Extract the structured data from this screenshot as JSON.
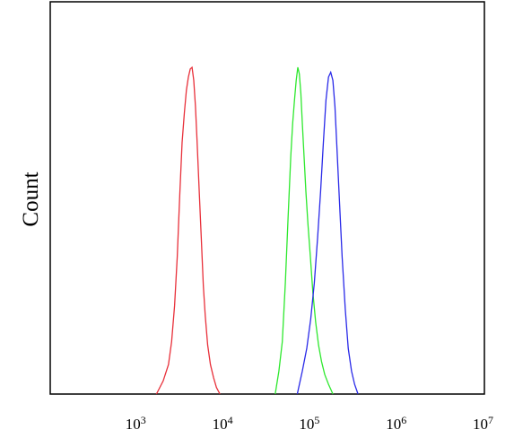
{
  "chart_data": {
    "type": "line",
    "title": "",
    "xlabel": "",
    "ylabel": "Count",
    "x_scale": "log",
    "xlim": [
      100,
      10000000
    ],
    "ylim": [
      0,
      1
    ],
    "grid": false,
    "legend": "none",
    "x_ticks": [
      {
        "base": "10",
        "exp": "3",
        "value": 1000
      },
      {
        "base": "10",
        "exp": "4",
        "value": 10000
      },
      {
        "base": "10",
        "exp": "5",
        "value": 100000
      },
      {
        "base": "10",
        "exp": "6",
        "value": 1000000
      },
      {
        "base": "10",
        "exp": "7",
        "value": 10000000
      }
    ],
    "series": [
      {
        "color": "#e8303a",
        "x": [
          1670,
          2000,
          2300,
          2500,
          2700,
          2900,
          3100,
          3300,
          3500,
          3700,
          3900,
          4100,
          4300,
          4500,
          4700,
          4900,
          5200,
          5500,
          5800,
          6100,
          6500,
          7000,
          7600,
          8200,
          9000
        ],
        "y": [
          0.0,
          0.04,
          0.09,
          0.16,
          0.27,
          0.42,
          0.61,
          0.77,
          0.86,
          0.93,
          0.97,
          0.995,
          1.0,
          0.96,
          0.88,
          0.78,
          0.62,
          0.47,
          0.33,
          0.24,
          0.15,
          0.09,
          0.05,
          0.02,
          0.0
        ]
      },
      {
        "color": "#2ee82e",
        "x": [
          39000,
          43000,
          47000,
          51000,
          55000,
          59000,
          62000,
          65000,
          68000,
          71000,
          74000,
          77000,
          80000,
          84000,
          88000,
          93000,
          99000,
          106000,
          114000,
          123000,
          133000,
          145000,
          160000,
          180000
        ],
        "y": [
          0.0,
          0.07,
          0.16,
          0.34,
          0.55,
          0.73,
          0.83,
          0.9,
          0.96,
          1.0,
          0.98,
          0.92,
          0.83,
          0.72,
          0.62,
          0.52,
          0.42,
          0.31,
          0.22,
          0.15,
          0.1,
          0.06,
          0.03,
          0.0
        ]
      },
      {
        "color": "#2a2ae8",
        "x": [
          70000,
          80000,
          90000,
          100000,
          110000,
          120000,
          130000,
          140000,
          150000,
          160000,
          170000,
          180000,
          190000,
          200000,
          215000,
          230000,
          250000,
          270000,
          295000,
          320000,
          350000
        ],
        "y": [
          0.0,
          0.07,
          0.14,
          0.23,
          0.34,
          0.48,
          0.62,
          0.77,
          0.9,
          0.97,
          0.985,
          0.96,
          0.88,
          0.76,
          0.58,
          0.42,
          0.26,
          0.14,
          0.07,
          0.03,
          0.0
        ]
      }
    ]
  }
}
